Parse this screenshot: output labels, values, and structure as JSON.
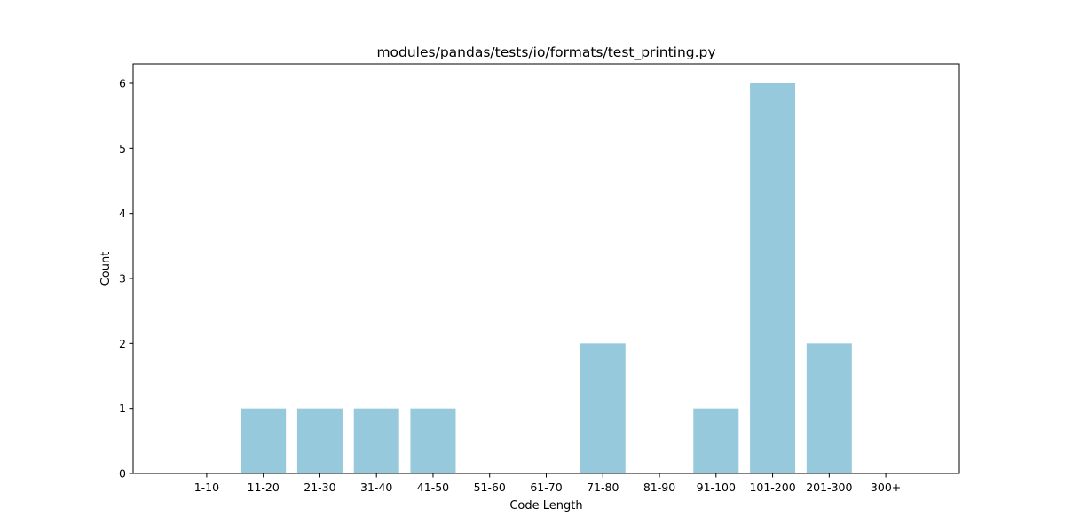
{
  "chart_data": {
    "type": "bar",
    "title": "modules/pandas/tests/io/formats/test_printing.py",
    "xlabel": "Code Length",
    "ylabel": "Count",
    "categories": [
      "1-10",
      "11-20",
      "21-30",
      "31-40",
      "41-50",
      "51-60",
      "61-70",
      "71-80",
      "81-90",
      "91-100",
      "101-200",
      "201-300",
      "300+"
    ],
    "values": [
      0,
      1,
      1,
      1,
      1,
      0,
      0,
      2,
      0,
      1,
      6,
      2,
      0
    ],
    "ylim": [
      0,
      6.3
    ],
    "yticks": [
      0,
      1,
      2,
      3,
      4,
      5,
      6
    ],
    "bar_color": "#96c9dc",
    "grid": false,
    "legend": "none"
  }
}
